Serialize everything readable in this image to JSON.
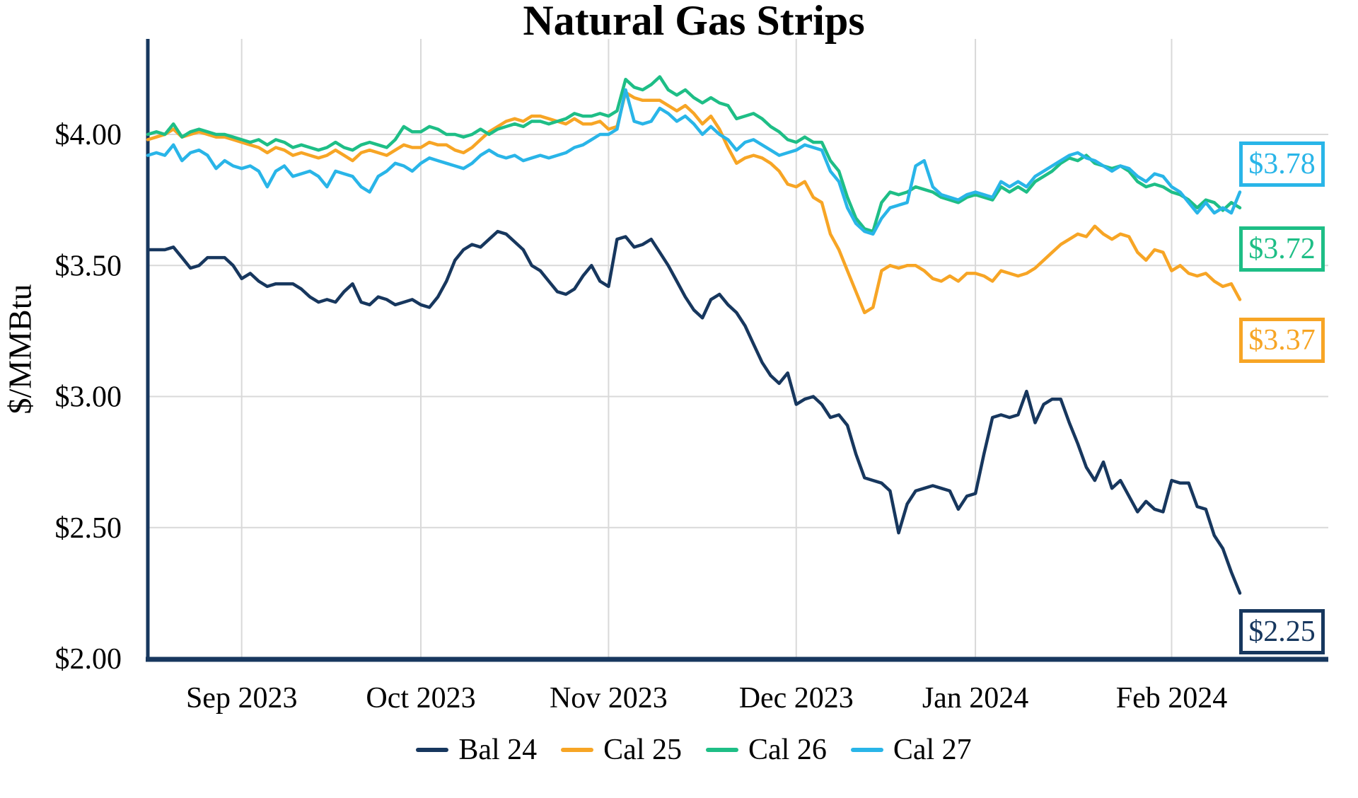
{
  "title": "Natural Gas Strips",
  "colors": {
    "axis": "#17375E",
    "gridline": "#D9D9D9",
    "text": "#000000",
    "background": "#FFFFFF"
  },
  "y_axis": {
    "label": "$/MMBtu",
    "ticks": [
      {
        "value": 4.0,
        "label": "$4.00"
      },
      {
        "value": 3.5,
        "label": "$3.50"
      },
      {
        "value": 3.0,
        "label": "$3.00"
      },
      {
        "value": 2.5,
        "label": "$2.50"
      },
      {
        "value": 2.0,
        "label": "$2.00"
      }
    ]
  },
  "x_axis": {
    "ticks": [
      {
        "label": "Sep 2023",
        "index": 11
      },
      {
        "label": "Oct 2023",
        "index": 32
      },
      {
        "label": "Nov 2023",
        "index": 54
      },
      {
        "label": "Dec 2023",
        "index": 76
      },
      {
        "label": "Jan 2024",
        "index": 97
      },
      {
        "label": "Feb 2024",
        "index": 120
      }
    ]
  },
  "chart_data": {
    "type": "line",
    "title": "Natural Gas Strips",
    "ylabel": "$/MMBtu",
    "ylim": [
      2.0,
      4.365
    ],
    "grid": true,
    "legend_position": "bottom",
    "x_range_labels": [
      "Sep 2023",
      "Oct 2023",
      "Nov 2023",
      "Dec 2023",
      "Jan 2024",
      "Feb 2024"
    ],
    "series": [
      {
        "name": "Bal 24",
        "color": "#17375E",
        "end_label": "$2.25",
        "end_value": 2.25,
        "values": [
          3.56,
          3.56,
          3.56,
          3.57,
          3.53,
          3.49,
          3.5,
          3.53,
          3.53,
          3.53,
          3.5,
          3.45,
          3.47,
          3.44,
          3.42,
          3.43,
          3.43,
          3.43,
          3.41,
          3.38,
          3.36,
          3.37,
          3.36,
          3.4,
          3.43,
          3.36,
          3.35,
          3.38,
          3.37,
          3.35,
          3.36,
          3.37,
          3.35,
          3.34,
          3.38,
          3.44,
          3.52,
          3.56,
          3.58,
          3.57,
          3.6,
          3.63,
          3.62,
          3.59,
          3.56,
          3.5,
          3.48,
          3.44,
          3.4,
          3.39,
          3.41,
          3.46,
          3.5,
          3.44,
          3.42,
          3.6,
          3.61,
          3.57,
          3.58,
          3.6,
          3.55,
          3.5,
          3.44,
          3.38,
          3.33,
          3.3,
          3.37,
          3.39,
          3.35,
          3.32,
          3.27,
          3.2,
          3.13,
          3.08,
          3.05,
          3.09,
          2.97,
          2.99,
          3.0,
          2.97,
          2.92,
          2.93,
          2.89,
          2.78,
          2.69,
          2.68,
          2.67,
          2.64,
          2.48,
          2.59,
          2.64,
          2.65,
          2.66,
          2.65,
          2.64,
          2.57,
          2.62,
          2.63,
          2.78,
          2.92,
          2.93,
          2.92,
          2.93,
          3.02,
          2.9,
          2.97,
          2.99,
          2.99,
          2.9,
          2.82,
          2.73,
          2.68,
          2.75,
          2.65,
          2.68,
          2.62,
          2.56,
          2.6,
          2.57,
          2.56,
          2.68,
          2.67,
          2.67,
          2.58,
          2.57,
          2.47,
          2.42,
          2.33,
          2.25
        ]
      },
      {
        "name": "Cal 25",
        "color": "#F7A525",
        "end_label": "$3.37",
        "end_value": 3.37,
        "values": [
          3.98,
          3.99,
          4.0,
          4.02,
          3.99,
          4.0,
          4.01,
          4.0,
          3.99,
          3.99,
          3.98,
          3.97,
          3.96,
          3.95,
          3.93,
          3.95,
          3.94,
          3.92,
          3.93,
          3.92,
          3.91,
          3.92,
          3.94,
          3.92,
          3.9,
          3.93,
          3.94,
          3.93,
          3.92,
          3.94,
          3.96,
          3.95,
          3.95,
          3.97,
          3.96,
          3.96,
          3.94,
          3.93,
          3.95,
          3.98,
          4.01,
          4.03,
          4.05,
          4.06,
          4.05,
          4.07,
          4.07,
          4.06,
          4.05,
          4.04,
          4.06,
          4.04,
          4.04,
          4.05,
          4.02,
          4.03,
          4.16,
          4.14,
          4.13,
          4.13,
          4.13,
          4.11,
          4.09,
          4.11,
          4.08,
          4.04,
          4.07,
          4.02,
          3.95,
          3.89,
          3.91,
          3.92,
          3.91,
          3.89,
          3.86,
          3.81,
          3.8,
          3.82,
          3.76,
          3.74,
          3.62,
          3.56,
          3.48,
          3.4,
          3.32,
          3.34,
          3.48,
          3.5,
          3.49,
          3.5,
          3.5,
          3.48,
          3.45,
          3.44,
          3.46,
          3.44,
          3.47,
          3.47,
          3.46,
          3.44,
          3.48,
          3.47,
          3.46,
          3.47,
          3.49,
          3.52,
          3.55,
          3.58,
          3.6,
          3.62,
          3.61,
          3.65,
          3.62,
          3.6,
          3.62,
          3.61,
          3.55,
          3.52,
          3.56,
          3.55,
          3.48,
          3.5,
          3.47,
          3.46,
          3.47,
          3.44,
          3.42,
          3.43,
          3.37
        ]
      },
      {
        "name": "Cal 26",
        "color": "#1EBE86",
        "end_label": "$3.72",
        "end_value": 3.72,
        "values": [
          4.0,
          4.01,
          4.0,
          4.04,
          3.99,
          4.01,
          4.02,
          4.01,
          4.0,
          4.0,
          3.99,
          3.98,
          3.97,
          3.98,
          3.96,
          3.98,
          3.97,
          3.95,
          3.96,
          3.95,
          3.94,
          3.95,
          3.97,
          3.95,
          3.94,
          3.96,
          3.97,
          3.96,
          3.95,
          3.98,
          4.03,
          4.01,
          4.01,
          4.03,
          4.02,
          4.0,
          4.0,
          3.99,
          4.0,
          4.02,
          4.0,
          4.02,
          4.03,
          4.04,
          4.03,
          4.05,
          4.05,
          4.04,
          4.05,
          4.06,
          4.08,
          4.07,
          4.07,
          4.08,
          4.07,
          4.09,
          4.21,
          4.18,
          4.17,
          4.19,
          4.22,
          4.17,
          4.15,
          4.17,
          4.14,
          4.12,
          4.14,
          4.12,
          4.11,
          4.06,
          4.07,
          4.08,
          4.06,
          4.03,
          4.01,
          3.98,
          3.97,
          3.99,
          3.97,
          3.97,
          3.9,
          3.86,
          3.76,
          3.68,
          3.64,
          3.63,
          3.74,
          3.78,
          3.77,
          3.78,
          3.8,
          3.79,
          3.78,
          3.76,
          3.75,
          3.74,
          3.76,
          3.77,
          3.76,
          3.75,
          3.8,
          3.78,
          3.8,
          3.78,
          3.82,
          3.84,
          3.86,
          3.89,
          3.91,
          3.9,
          3.92,
          3.89,
          3.88,
          3.87,
          3.88,
          3.86,
          3.82,
          3.8,
          3.81,
          3.8,
          3.78,
          3.77,
          3.75,
          3.72,
          3.75,
          3.74,
          3.71,
          3.74,
          3.72
        ]
      },
      {
        "name": "Cal 27",
        "color": "#29B5E8",
        "end_label": "$3.78",
        "end_value": 3.78,
        "values": [
          3.92,
          3.93,
          3.92,
          3.96,
          3.9,
          3.93,
          3.94,
          3.92,
          3.87,
          3.9,
          3.88,
          3.87,
          3.88,
          3.86,
          3.8,
          3.86,
          3.88,
          3.84,
          3.85,
          3.86,
          3.84,
          3.8,
          3.86,
          3.85,
          3.84,
          3.8,
          3.78,
          3.84,
          3.86,
          3.89,
          3.88,
          3.86,
          3.89,
          3.91,
          3.9,
          3.89,
          3.88,
          3.87,
          3.89,
          3.92,
          3.94,
          3.92,
          3.91,
          3.92,
          3.9,
          3.91,
          3.92,
          3.91,
          3.92,
          3.93,
          3.95,
          3.96,
          3.98,
          4.0,
          4.0,
          4.02,
          4.17,
          4.05,
          4.04,
          4.05,
          4.1,
          4.08,
          4.05,
          4.07,
          4.04,
          4.0,
          4.03,
          4.0,
          3.98,
          3.94,
          3.97,
          3.98,
          3.96,
          3.94,
          3.92,
          3.93,
          3.94,
          3.96,
          3.95,
          3.94,
          3.86,
          3.82,
          3.72,
          3.66,
          3.63,
          3.62,
          3.68,
          3.72,
          3.73,
          3.74,
          3.88,
          3.9,
          3.8,
          3.77,
          3.76,
          3.75,
          3.77,
          3.78,
          3.77,
          3.76,
          3.82,
          3.8,
          3.82,
          3.8,
          3.84,
          3.86,
          3.88,
          3.9,
          3.92,
          3.93,
          3.91,
          3.9,
          3.88,
          3.86,
          3.88,
          3.87,
          3.84,
          3.82,
          3.85,
          3.84,
          3.8,
          3.78,
          3.74,
          3.7,
          3.74,
          3.7,
          3.72,
          3.7,
          3.78
        ]
      }
    ]
  }
}
